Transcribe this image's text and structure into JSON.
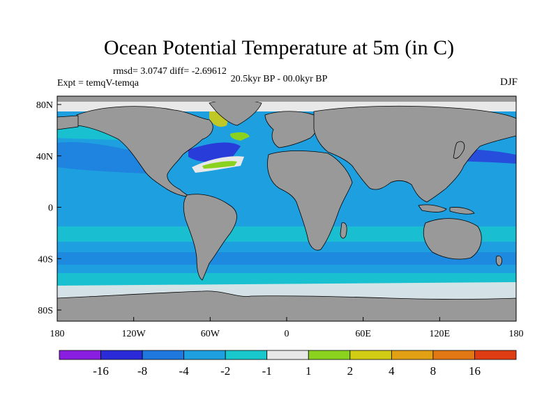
{
  "title": "Ocean Potential Temperature at 5m (in C)",
  "stats_text": "rmsd= 3.0747 diff= -2.69612",
  "expt_text": "Expt = temqV-temqa",
  "period_text": "20.5kyr BP - 00.0kyr BP",
  "season_text": "DJF",
  "map": {
    "lon_range": [
      -180,
      180
    ],
    "lat_range": [
      -90,
      90
    ],
    "lon_ticks": [
      {
        "value": -180,
        "label": "180"
      },
      {
        "value": -120,
        "label": "120W"
      },
      {
        "value": -60,
        "label": "60W"
      },
      {
        "value": 0,
        "label": "0"
      },
      {
        "value": 60,
        "label": "60E"
      },
      {
        "value": 120,
        "label": "120E"
      },
      {
        "value": 180,
        "label": "180"
      }
    ],
    "lat_ticks": [
      {
        "value": 80,
        "label": "80N"
      },
      {
        "value": 40,
        "label": "40N"
      },
      {
        "value": 0,
        "label": "0"
      },
      {
        "value": -40,
        "label": "40S"
      },
      {
        "value": -80,
        "label": "80S"
      }
    ]
  },
  "colorbar": {
    "colors": [
      "#8a1ee0",
      "#2a2ad8",
      "#1e78de",
      "#1ea0e0",
      "#18c8cc",
      "#e8e8e8",
      "#8ad21e",
      "#d2cc14",
      "#e2a014",
      "#e27814",
      "#e03c14"
    ],
    "labels": [
      "-16",
      "-8",
      "-4",
      "-2",
      "-1",
      "1",
      "2",
      "4",
      "8",
      "16"
    ]
  },
  "colors": {
    "land": "#999999",
    "ocean_main": "#1ea0e0",
    "ocean_light": "#18c8cc",
    "ocean_dark": "#1e78de",
    "ocean_deep": "#2a2ad8",
    "neutral": "#e8e8e8",
    "warm_green": "#8ad21e",
    "warm_yellow": "#d2cc14"
  }
}
